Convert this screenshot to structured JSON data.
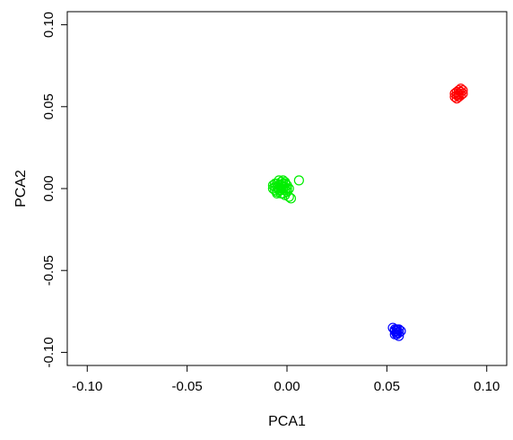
{
  "chart_data": {
    "type": "scatter",
    "xlabel": "PCA1",
    "ylabel": "PCA2",
    "xlim": [
      -0.11,
      0.11
    ],
    "ylim": [
      -0.108,
      0.108
    ],
    "x_ticks": [
      -0.1,
      -0.05,
      0.0,
      0.05,
      0.1
    ],
    "y_ticks": [
      -0.1,
      -0.05,
      0.0,
      0.05,
      0.1
    ],
    "x_tick_labels": [
      "-0.10",
      "-0.05",
      "0.00",
      "0.05",
      "0.10"
    ],
    "y_tick_labels": [
      "-0.10",
      "-0.05",
      "0.00",
      "0.05",
      "0.10"
    ],
    "grid": false,
    "legend": "none",
    "series": [
      {
        "color": "#00ee00",
        "points": [
          [
            -0.006,
            0.001
          ],
          [
            -0.005,
            0.003
          ],
          [
            -0.004,
            -0.001
          ],
          [
            -0.003,
            0.002
          ],
          [
            -0.002,
            0.0
          ],
          [
            -0.001,
            0.004
          ],
          [
            0.0,
            -0.002
          ],
          [
            -0.007,
            0.0
          ],
          [
            -0.005,
            -0.002
          ],
          [
            -0.003,
            0.004
          ],
          [
            -0.002,
            -0.003
          ],
          [
            -0.001,
            0.001
          ],
          [
            -0.004,
            0.002
          ],
          [
            -0.006,
            -0.001
          ],
          [
            -0.003,
            -0.001
          ],
          [
            -0.002,
            0.003
          ],
          [
            -0.001,
            -0.001
          ],
          [
            -0.004,
            0.0
          ],
          [
            -0.005,
            0.001
          ],
          [
            -0.003,
            0.0
          ],
          [
            -0.002,
            0.001
          ],
          [
            0.0,
            0.002
          ],
          [
            -0.001,
            -0.004
          ],
          [
            0.001,
            -0.005
          ],
          [
            0.002,
            -0.006
          ],
          [
            -0.003,
            -0.003
          ],
          [
            -0.006,
            0.003
          ],
          [
            -0.004,
            0.005
          ],
          [
            -0.002,
            0.005
          ],
          [
            0.001,
            0.0
          ],
          [
            0.006,
            0.005
          ],
          [
            -0.007,
            0.002
          ],
          [
            -0.005,
            -0.003
          ],
          [
            -0.001,
            0.003
          ],
          [
            0.0,
            0.0
          ]
        ]
      },
      {
        "color": "#ff0000",
        "points": [
          [
            0.085,
            0.057
          ],
          [
            0.086,
            0.058
          ],
          [
            0.087,
            0.059
          ],
          [
            0.084,
            0.056
          ],
          [
            0.086,
            0.056
          ],
          [
            0.085,
            0.059
          ],
          [
            0.087,
            0.061
          ],
          [
            0.088,
            0.058
          ],
          [
            0.084,
            0.058
          ],
          [
            0.086,
            0.06
          ],
          [
            0.085,
            0.055
          ],
          [
            0.087,
            0.057
          ],
          [
            0.088,
            0.06
          ],
          [
            0.086,
            0.057
          ]
        ]
      },
      {
        "color": "#0000ff",
        "points": [
          [
            0.054,
            -0.087
          ],
          [
            0.055,
            -0.088
          ],
          [
            0.056,
            -0.086
          ],
          [
            0.053,
            -0.085
          ],
          [
            0.055,
            -0.089
          ],
          [
            0.056,
            -0.088
          ],
          [
            0.054,
            -0.086
          ],
          [
            0.057,
            -0.087
          ],
          [
            0.055,
            -0.086
          ],
          [
            0.056,
            -0.09
          ],
          [
            0.054,
            -0.089
          ],
          [
            0.055,
            -0.087
          ]
        ]
      }
    ]
  }
}
